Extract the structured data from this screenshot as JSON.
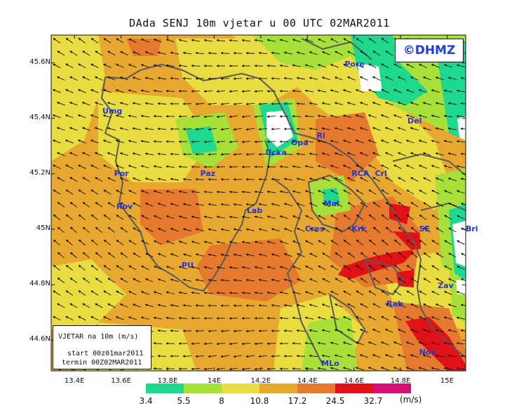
{
  "title": "DAda SENJ 10m vjetar u 00 UTC 02MAR2011",
  "copyright": "©DHMZ",
  "y_axis_ticks": [
    "45.6N",
    "45.4N",
    "45.2N",
    "45N",
    "44.8N",
    "44.6N"
  ],
  "x_axis_ticks": [
    "13.4E",
    "13.6E",
    "13.8E",
    "14E",
    "14.2E",
    "14.4E",
    "14.6E",
    "14.8E",
    "15E"
  ],
  "legend_box": {
    "title": "VJETAR na 10m (m/s)",
    "start": "start 00z01mar2011",
    "termin": "termin 00Z02MAR2011"
  },
  "colorbar": {
    "labels": [
      "3.4",
      "5.5",
      "8",
      "10.8",
      "17.2",
      "24.5",
      "32.7"
    ],
    "unit": "(m/s)",
    "colors": [
      "#ffffff",
      "#1fd890",
      "#a6e038",
      "#e8dc40",
      "#e8a830",
      "#e57a2e",
      "#e01218",
      "#d80f73"
    ]
  },
  "places": [
    {
      "name": "Pore",
      "lon": 14.56,
      "lat": 45.595
    },
    {
      "name": "Umg",
      "lon": 13.52,
      "lat": 45.425
    },
    {
      "name": "Del",
      "lon": 14.83,
      "lat": 45.39
    },
    {
      "name": "Ri",
      "lon": 14.44,
      "lat": 45.335
    },
    {
      "name": "Opa",
      "lon": 14.33,
      "lat": 45.31
    },
    {
      "name": "Ucka",
      "lon": 14.22,
      "lat": 45.275
    },
    {
      "name": "Por",
      "lon": 13.57,
      "lat": 45.2
    },
    {
      "name": "Paz",
      "lon": 13.94,
      "lat": 45.2
    },
    {
      "name": "RCA",
      "lon": 14.59,
      "lat": 45.2
    },
    {
      "name": "Crl",
      "lon": 14.69,
      "lat": 45.2
    },
    {
      "name": "Rov",
      "lon": 13.58,
      "lat": 45.08
    },
    {
      "name": "Mal",
      "lon": 14.47,
      "lat": 45.09
    },
    {
      "name": "Lab",
      "lon": 14.14,
      "lat": 45.065
    },
    {
      "name": "Cres",
      "lon": 14.39,
      "lat": 45.0
    },
    {
      "name": "Krk",
      "lon": 14.59,
      "lat": 45.0
    },
    {
      "name": "SE",
      "lon": 14.88,
      "lat": 45.0
    },
    {
      "name": "Bri",
      "lon": 15.08,
      "lat": 45.0
    },
    {
      "name": "PU",
      "lon": 13.86,
      "lat": 44.87
    },
    {
      "name": "Zav",
      "lon": 14.96,
      "lat": 44.795
    },
    {
      "name": "Rab",
      "lon": 14.74,
      "lat": 44.73
    },
    {
      "name": "Nov",
      "lon": 14.88,
      "lat": 44.555
    },
    {
      "name": "MLo",
      "lon": 14.46,
      "lat": 44.515
    }
  ]
}
